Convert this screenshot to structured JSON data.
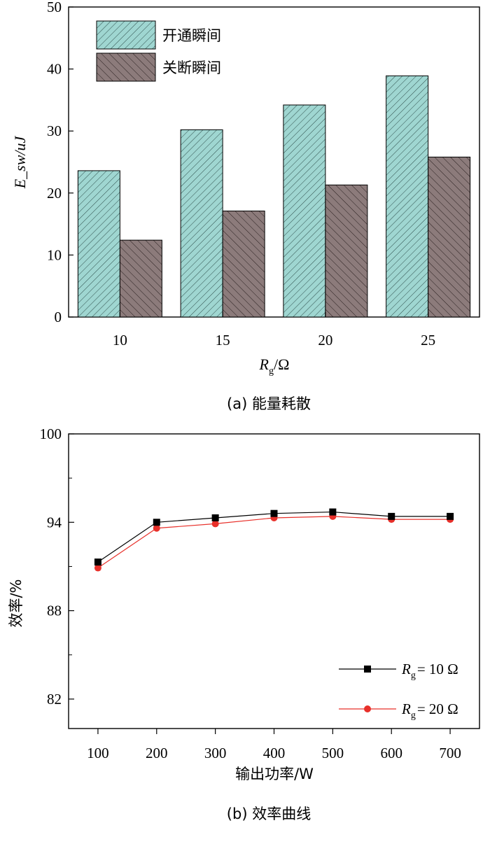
{
  "chart_data": [
    {
      "type": "bar",
      "categories": [
        "10",
        "15",
        "20",
        "25"
      ],
      "series": [
        {
          "name": "开通瞬间",
          "values": [
            23.6,
            30.2,
            34.2,
            38.9
          ],
          "color": "#9fd6d1"
        },
        {
          "name": "关断瞬间",
          "values": [
            12.4,
            17.1,
            21.3,
            25.8
          ],
          "color": "#8c7b7b"
        }
      ],
      "ylabel": "E_sw/uJ",
      "xlabel_main": "R",
      "xlabel_sub": "g",
      "xlabel_unit": "/Ω",
      "ylim": [
        0,
        50
      ],
      "yticks": [
        "0",
        "10",
        "20",
        "30",
        "40",
        "50"
      ],
      "legend_position": "top-left",
      "caption": "(a) 能量耗散"
    },
    {
      "type": "line",
      "x": [
        100,
        200,
        300,
        400,
        500,
        600,
        700
      ],
      "xticks": [
        "100",
        "200",
        "300",
        "400",
        "500",
        "600",
        "700"
      ],
      "series": [
        {
          "name_main": "R",
          "name_sub": "g",
          "name_rest": "= 10 Ω",
          "values": [
            91.3,
            94.0,
            94.3,
            94.6,
            94.7,
            94.4,
            94.4
          ],
          "color": "#000000",
          "marker": "square"
        },
        {
          "name_main": "R",
          "name_sub": "g",
          "name_rest": "= 20 Ω",
          "values": [
            90.9,
            93.6,
            93.9,
            94.3,
            94.4,
            94.2,
            94.2
          ],
          "color": "#e8302a",
          "marker": "circle"
        }
      ],
      "ylabel": "效率/%",
      "xlabel": "输出功率/W",
      "ylim": [
        80,
        100
      ],
      "yticks": [
        "82",
        "88",
        "94",
        "100"
      ],
      "legend_position": "bottom-right",
      "caption": "(b) 效率曲线"
    }
  ]
}
